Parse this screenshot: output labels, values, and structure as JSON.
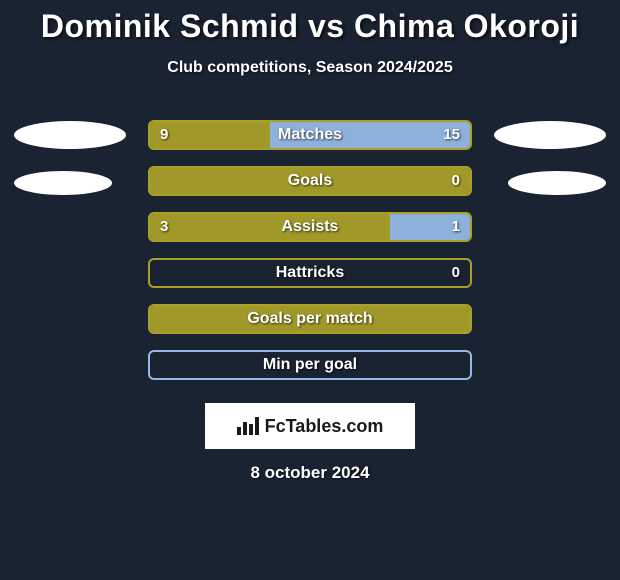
{
  "title": "Dominik Schmid vs Chima Okoroji",
  "subtitle": "Club competitions, Season 2024/2025",
  "date": "8 october 2024",
  "logo_text": "FcTables.com",
  "colors": {
    "background": "#1a2332",
    "left_fill": "#a8a029",
    "right_fill": "#95b9e6",
    "left_border": "#a8a029",
    "right_border": "#a8a029",
    "ellipse": "#ffffff",
    "text": "#ffffff"
  },
  "chart": {
    "rows": [
      {
        "label": "Matches",
        "left_val": "9",
        "right_val": "15",
        "left_pct": 37.5,
        "right_pct": 62.5,
        "show_vals": true,
        "show_left_ellipse": true,
        "show_right_ellipse": true,
        "ellipse_size": "big",
        "border_color": "#a8a029",
        "left_color": "#a8a029",
        "right_color": "#95b9e6"
      },
      {
        "label": "Goals",
        "left_val": "",
        "right_val": "0",
        "left_pct": 100,
        "right_pct": 0,
        "show_vals": true,
        "show_left_ellipse": true,
        "show_right_ellipse": true,
        "ellipse_size": "small",
        "border_color": "#a8a029",
        "left_color": "#a8a029",
        "right_color": "#95b9e6"
      },
      {
        "label": "Assists",
        "left_val": "3",
        "right_val": "1",
        "left_pct": 75,
        "right_pct": 25,
        "show_vals": true,
        "show_left_ellipse": false,
        "show_right_ellipse": false,
        "ellipse_size": "small",
        "border_color": "#a8a029",
        "left_color": "#a8a029",
        "right_color": "#95b9e6"
      },
      {
        "label": "Hattricks",
        "left_val": "",
        "right_val": "0",
        "left_pct": 0,
        "right_pct": 0,
        "show_vals": true,
        "show_left_ellipse": false,
        "show_right_ellipse": false,
        "ellipse_size": "small",
        "border_color": "#a8a029",
        "left_color": "#a8a029",
        "right_color": "#95b9e6"
      },
      {
        "label": "Goals per match",
        "left_val": "",
        "right_val": "",
        "left_pct": 100,
        "right_pct": 0,
        "show_vals": false,
        "show_left_ellipse": false,
        "show_right_ellipse": false,
        "ellipse_size": "small",
        "border_color": "#a8a029",
        "left_color": "#a8a029",
        "right_color": "#95b9e6"
      },
      {
        "label": "Min per goal",
        "left_val": "",
        "right_val": "",
        "left_pct": 0,
        "right_pct": 0,
        "show_vals": false,
        "show_left_ellipse": false,
        "show_right_ellipse": false,
        "ellipse_size": "small",
        "border_color": "#95b9e6",
        "left_color": "#a8a029",
        "right_color": "#95b9e6"
      }
    ]
  }
}
